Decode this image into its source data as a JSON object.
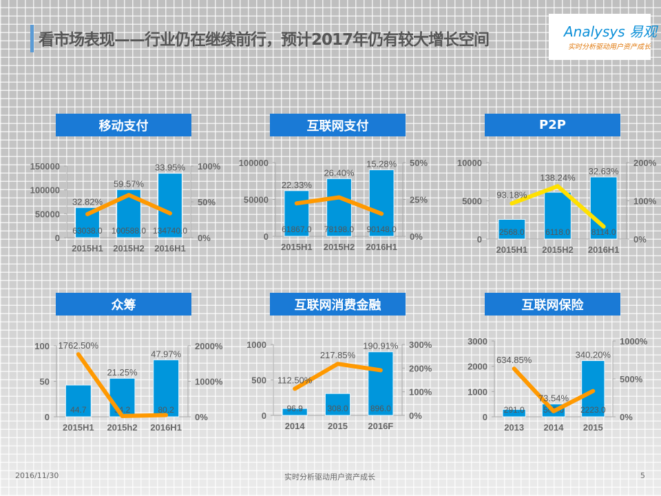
{
  "header": {
    "title": "看市场表现——行业仍在继续前行，预计2017年仍有较大增长空间",
    "logo_en": "Analysys 易观",
    "logo_sub": "实时分析驱动用户资产成长"
  },
  "footer": {
    "date": "2016/11/30",
    "center": "实时分析驱动用户资产成长",
    "page": "5"
  },
  "colors": {
    "bar": "#0096dc",
    "line_orange": "#ff9900",
    "line_yellow": "#ffe000",
    "title_box": "#1a7ad6"
  },
  "chart_data": [
    {
      "type": "bar+line",
      "title": "移动支付",
      "categories": [
        "2015H1",
        "2015H2",
        "2016H1"
      ],
      "values": [
        63038,
        100588,
        134740
      ],
      "value_labels": [
        "63038.0",
        "100588.0",
        "134740.0"
      ],
      "growth": [
        32.82,
        59.57,
        33.95
      ],
      "growth_labels": [
        "32.82%",
        "59.57%",
        "33.95%"
      ],
      "ylim": [
        0,
        150000
      ],
      "yticks": [
        "0",
        "50000",
        "100000",
        "150000"
      ],
      "y2lim": [
        0,
        100
      ],
      "y2ticks": [
        "0%",
        "50%",
        "100%"
      ],
      "line_color": "#ff9900"
    },
    {
      "type": "bar+line",
      "title": "互联网支付",
      "categories": [
        "2015H1",
        "2015H2",
        "2016H1"
      ],
      "values": [
        61867,
        78198,
        90148
      ],
      "value_labels": [
        "61867.0",
        "78198.0",
        "90148.0"
      ],
      "growth": [
        22.33,
        26.4,
        15.28
      ],
      "growth_labels": [
        "22.33%",
        "26.40%",
        "15.28%"
      ],
      "ylim": [
        0,
        100000
      ],
      "yticks": [
        "0",
        "50000",
        "100000"
      ],
      "y2lim": [
        0,
        50
      ],
      "y2ticks": [
        "0%",
        "25%",
        "50%"
      ],
      "line_color": "#ff9900"
    },
    {
      "type": "bar+line",
      "title": "P2P",
      "categories": [
        "2015H1",
        "2015H2",
        "2016H1"
      ],
      "values": [
        2568,
        6118,
        8114
      ],
      "value_labels": [
        "2568.0",
        "6118.0",
        "8114.0"
      ],
      "growth": [
        93.18,
        138.24,
        32.63
      ],
      "growth_labels": [
        "93.18%",
        "138.24%",
        "32.63%"
      ],
      "ylim": [
        0,
        10000
      ],
      "yticks": [
        "0",
        "5000",
        "10000"
      ],
      "y2lim": [
        0,
        200
      ],
      "y2ticks": [
        "0%",
        "100%",
        "200%"
      ],
      "line_color": "#ffe000"
    },
    {
      "type": "bar+line",
      "title": "众筹",
      "categories": [
        "2015H1",
        "2015h2",
        "2016H1"
      ],
      "values": [
        44.7,
        54.2,
        80.2
      ],
      "value_labels": [
        "44.7",
        "54.2",
        "80.2"
      ],
      "growth": [
        1762.5,
        21.25,
        47.97
      ],
      "growth_labels": [
        "1762.50%",
        "21.25%",
        "47.97%"
      ],
      "ylim": [
        0,
        100
      ],
      "yticks": [
        "0",
        "50",
        "100"
      ],
      "y2lim": [
        0,
        2000
      ],
      "y2ticks": [
        "0%",
        "1000%",
        "2000%"
      ],
      "line_color": "#ff9900"
    },
    {
      "type": "bar+line",
      "title": "互联网消费金融",
      "categories": [
        "2014",
        "2015",
        "2016F"
      ],
      "values": [
        96.9,
        308.0,
        896.0
      ],
      "value_labels": [
        "96.9",
        "308.0",
        "896.0"
      ],
      "growth": [
        112.5,
        217.85,
        190.91
      ],
      "growth_labels": [
        "112.50%",
        "217.85%",
        "190.91%"
      ],
      "ylim": [
        0,
        1000
      ],
      "yticks": [
        "0",
        "500",
        "1000"
      ],
      "y2lim": [
        0,
        300
      ],
      "y2ticks": [
        "0%",
        "100%",
        "200%",
        "300%"
      ],
      "line_color": "#ff9900"
    },
    {
      "type": "bar+line",
      "title": "互联网保险",
      "categories": [
        "2013",
        "2014",
        "2015"
      ],
      "values": [
        291.0,
        505.0,
        2223.0
      ],
      "value_labels": [
        "291.0",
        "505.0",
        "2223.0"
      ],
      "growth": [
        634.85,
        73.54,
        340.2
      ],
      "growth_labels": [
        "634.85%",
        "73.54%",
        "340.20%"
      ],
      "ylim": [
        0,
        3000
      ],
      "yticks": [
        "0",
        "1000",
        "2000",
        "3000"
      ],
      "y2lim": [
        0,
        1000
      ],
      "y2ticks": [
        "0%",
        "500%",
        "1000%"
      ],
      "line_color": "#ff9900"
    }
  ]
}
